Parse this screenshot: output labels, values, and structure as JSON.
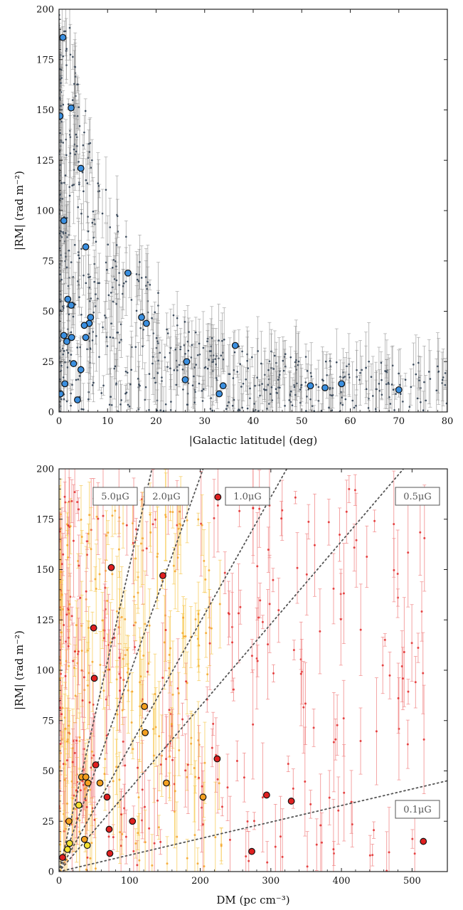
{
  "chart_data": [
    {
      "type": "scatter",
      "xlabel": "|Galactic latitude| (deg)",
      "ylabel": "|RM| (rad m⁻²)",
      "xlim": [
        0,
        80
      ],
      "ylim": [
        0,
        200
      ],
      "xticks": [
        0,
        10,
        20,
        30,
        40,
        50,
        60,
        70,
        80
      ],
      "yticks": [
        0,
        25,
        50,
        75,
        100,
        125,
        150,
        175,
        200
      ],
      "colors": {
        "highlight": "#3a8fe0",
        "background": "#3a4a5c",
        "errorbar": "#8a8a8a"
      },
      "highlight_points": [
        {
          "x": 0.8,
          "y": 186
        },
        {
          "x": 0.2,
          "y": 147
        },
        {
          "x": 2.5,
          "y": 151
        },
        {
          "x": 4.5,
          "y": 121
        },
        {
          "x": 1.0,
          "y": 95
        },
        {
          "x": 5.5,
          "y": 82
        },
        {
          "x": 14.2,
          "y": 69
        },
        {
          "x": 1.8,
          "y": 56
        },
        {
          "x": 2.5,
          "y": 53
        },
        {
          "x": 17.0,
          "y": 47
        },
        {
          "x": 6.5,
          "y": 47
        },
        {
          "x": 18.0,
          "y": 44
        },
        {
          "x": 6.2,
          "y": 44
        },
        {
          "x": 5.2,
          "y": 43
        },
        {
          "x": 1.0,
          "y": 38
        },
        {
          "x": 5.5,
          "y": 37
        },
        {
          "x": 2.6,
          "y": 37
        },
        {
          "x": 1.6,
          "y": 35
        },
        {
          "x": 36.3,
          "y": 33
        },
        {
          "x": 3.0,
          "y": 24
        },
        {
          "x": 26.3,
          "y": 25
        },
        {
          "x": 4.5,
          "y": 21
        },
        {
          "x": 26.0,
          "y": 16
        },
        {
          "x": 1.2,
          "y": 14
        },
        {
          "x": 33.8,
          "y": 13
        },
        {
          "x": 51.8,
          "y": 13
        },
        {
          "x": 54.8,
          "y": 12
        },
        {
          "x": 58.2,
          "y": 14
        },
        {
          "x": 70.0,
          "y": 11
        },
        {
          "x": 33.0,
          "y": 9
        },
        {
          "x": 0.3,
          "y": 9
        },
        {
          "x": 3.8,
          "y": 6
        }
      ]
    },
    {
      "type": "scatter",
      "xlabel": "DM (pc cm⁻³)",
      "ylabel": "|RM| (rad m⁻²)",
      "xlim": [
        0,
        550
      ],
      "ylim": [
        0,
        200
      ],
      "xticks": [
        0,
        100,
        200,
        300,
        400,
        500
      ],
      "yticks": [
        0,
        25,
        50,
        75,
        100,
        125,
        150,
        175,
        200
      ],
      "colors": {
        "red": "#e02020",
        "orange": "#f4a020",
        "yellow": "#f4e030",
        "errorbar_red": "#f08080",
        "errorbar_yellow": "#f6c850",
        "reference_line": "#555555"
      },
      "reference_lines": [
        {
          "label": "5.0μG",
          "slope": 1.52
        },
        {
          "label": "2.0μG",
          "slope": 0.98
        },
        {
          "label": "1.0μG",
          "slope": 0.62
        },
        {
          "label": "0.5μG",
          "slope": 0.41
        },
        {
          "label": "0.1μG",
          "slope": 0.082
        }
      ],
      "highlight_points": [
        {
          "x": 225,
          "y": 186,
          "color": "red"
        },
        {
          "x": 147,
          "y": 147,
          "color": "red"
        },
        {
          "x": 74,
          "y": 151,
          "color": "red"
        },
        {
          "x": 49,
          "y": 121,
          "color": "red"
        },
        {
          "x": 50,
          "y": 96,
          "color": "red"
        },
        {
          "x": 121,
          "y": 82,
          "color": "orange"
        },
        {
          "x": 122,
          "y": 69,
          "color": "orange"
        },
        {
          "x": 52,
          "y": 53,
          "color": "red"
        },
        {
          "x": 224,
          "y": 56,
          "color": "red"
        },
        {
          "x": 32,
          "y": 47,
          "color": "orange"
        },
        {
          "x": 38,
          "y": 47,
          "color": "orange"
        },
        {
          "x": 58,
          "y": 44,
          "color": "orange"
        },
        {
          "x": 41,
          "y": 44,
          "color": "orange"
        },
        {
          "x": 152,
          "y": 44,
          "color": "orange"
        },
        {
          "x": 294,
          "y": 38,
          "color": "red"
        },
        {
          "x": 68,
          "y": 37,
          "color": "red"
        },
        {
          "x": 204,
          "y": 37,
          "color": "orange"
        },
        {
          "x": 329,
          "y": 35,
          "color": "red"
        },
        {
          "x": 28,
          "y": 33,
          "color": "yellow"
        },
        {
          "x": 14,
          "y": 25,
          "color": "orange"
        },
        {
          "x": 104,
          "y": 25,
          "color": "red"
        },
        {
          "x": 71,
          "y": 21,
          "color": "red"
        },
        {
          "x": 36,
          "y": 16,
          "color": "orange"
        },
        {
          "x": 516,
          "y": 15,
          "color": "red"
        },
        {
          "x": 15,
          "y": 14,
          "color": "yellow"
        },
        {
          "x": 40,
          "y": 13,
          "color": "yellow"
        },
        {
          "x": 12,
          "y": 11,
          "color": "yellow"
        },
        {
          "x": 273,
          "y": 10,
          "color": "red"
        },
        {
          "x": 72,
          "y": 9,
          "color": "red"
        },
        {
          "x": 5,
          "y": 7,
          "color": "red"
        }
      ]
    }
  ]
}
